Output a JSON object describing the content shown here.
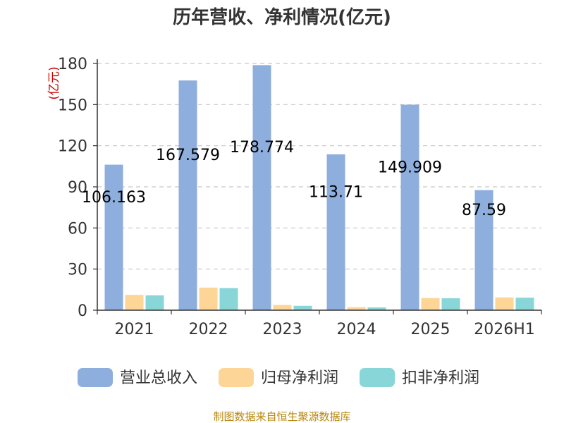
{
  "chart_data": {
    "type": "bar",
    "title": "历年营收、净利情况(亿元)",
    "unit_label": "(亿元)",
    "categories": [
      "2021",
      "2022",
      "2023",
      "2024",
      "2025",
      "2026H1"
    ],
    "ylim": [
      0,
      180
    ],
    "yticks": [
      0,
      30,
      60,
      90,
      120,
      150,
      180
    ],
    "grid": true,
    "legend_position": "bottom",
    "series": [
      {
        "name": "营业总收入",
        "color": "#8eaedd",
        "values": [
          106.163,
          167.579,
          178.774,
          113.71,
          149.909,
          87.59
        ],
        "labels": [
          "106.163",
          "167.579",
          "178.774",
          "113.71",
          "149.909",
          "87.59"
        ]
      },
      {
        "name": "归母净利润",
        "color": "#fdd697",
        "values": [
          11.2,
          16.5,
          3.8,
          2.2,
          8.9,
          9.3
        ]
      },
      {
        "name": "扣非净利润",
        "color": "#88d6d8",
        "values": [
          10.8,
          16.1,
          3.2,
          2.0,
          8.7,
          9.1
        ]
      }
    ]
  },
  "source_text": "制图数据来自恒生聚源数据库"
}
